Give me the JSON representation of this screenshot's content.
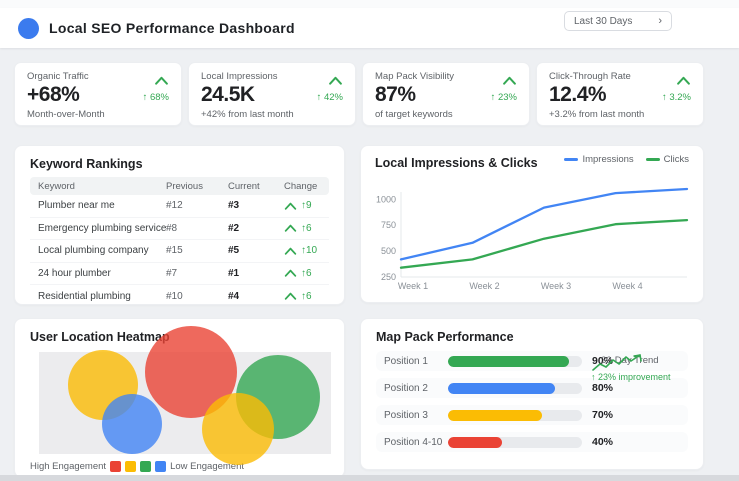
{
  "header": {
    "title": "Local SEO Performance Dashboard",
    "date_range": "Last 30 Days",
    "chevron": "›"
  },
  "colors": {
    "blue": "#4285F4",
    "green": "#34A853",
    "yellow": "#FBBC04",
    "red": "#EA4335",
    "delta_green": "#34a853"
  },
  "kpi_cards": [
    {
      "label": "Organic Traffic",
      "value": "+68%",
      "sub": "Month-over-Month",
      "delta": "↑ 68%"
    },
    {
      "label": "Local Impressions",
      "value": "24.5K",
      "sub": "+42% from last month",
      "delta": "↑ 42%"
    },
    {
      "label": "Map Pack Visibility",
      "value": "87%",
      "sub": "of target keywords",
      "delta": "↑ 23%"
    },
    {
      "label": "Click-Through Rate",
      "value": "12.4%",
      "sub": "+3.2% from last month",
      "delta": "↑ 3.2%"
    }
  ],
  "keyword_rankings": {
    "title": "Keyword Rankings",
    "columns": [
      "Keyword",
      "Previous",
      "Current",
      "Change"
    ],
    "rows": [
      {
        "keyword": "Plumber near me",
        "previous": "#12",
        "current": "#3",
        "change": "↑9"
      },
      {
        "keyword": "Emergency plumbing service",
        "previous": "#8",
        "current": "#2",
        "change": "↑6"
      },
      {
        "keyword": "Local plumbing company",
        "previous": "#15",
        "current": "#5",
        "change": "↑10"
      },
      {
        "keyword": "24 hour plumber",
        "previous": "#7",
        "current": "#1",
        "change": "↑6"
      },
      {
        "keyword": "Residential plumbing",
        "previous": "#10",
        "current": "#4",
        "change": "↑6"
      }
    ]
  },
  "chart_data": [
    {
      "id": "impressions_clicks",
      "type": "line",
      "title": "Local Impressions & Clicks",
      "x_tick_labels": [
        "Week 1",
        "Week 2",
        "Week 3",
        "Week 4"
      ],
      "y_ticks": [
        1000,
        750,
        500,
        250
      ],
      "ylim": [
        250,
        1100
      ],
      "grid": false,
      "legend_position": "top-right",
      "series": [
        {
          "name": "Impressions",
          "color": "#4285F4",
          "values": [
            420,
            580,
            920,
            1060,
            1100
          ]
        },
        {
          "name": "Clicks",
          "color": "#34A853",
          "values": [
            340,
            420,
            620,
            760,
            800
          ]
        }
      ]
    },
    {
      "id": "map_pack_performance",
      "type": "bar",
      "title": "Map Pack Performance",
      "categories": [
        "Position 1",
        "Position 2",
        "Position 3",
        "Position 4-10"
      ],
      "values": [
        90,
        80,
        70,
        40
      ],
      "value_labels": [
        "90%",
        "80%",
        "70%",
        "40%"
      ],
      "bar_colors": [
        "#34A853",
        "#4285F4",
        "#FBBC04",
        "#EA4335"
      ],
      "xlim": [
        0,
        100
      ],
      "annotations": {
        "trend_label": "30-Day Trend",
        "improvement_label": "↑ 23% improvement"
      }
    },
    {
      "id": "user_location_heatmap",
      "type": "scatter",
      "title": "User Location Heatmap",
      "legend": {
        "left": "High Engagement",
        "right": "Low Engagement",
        "swatch_colors": [
          "#EA4335",
          "#FBBC04",
          "#34A853",
          "#4285F4"
        ]
      },
      "bubbles": [
        {
          "color": "#FBBC04",
          "cx_pct": 22,
          "cy_pct": 32,
          "r": 35
        },
        {
          "color": "#EA4335",
          "cx_pct": 52,
          "cy_pct": 20,
          "r": 46
        },
        {
          "color": "#34A853",
          "cx_pct": 82,
          "cy_pct": 44,
          "r": 42
        },
        {
          "color": "#4285F4",
          "cx_pct": 32,
          "cy_pct": 71,
          "r": 30
        },
        {
          "color": "#FBBC04",
          "cx_pct": 68,
          "cy_pct": 75,
          "r": 36
        }
      ]
    }
  ]
}
